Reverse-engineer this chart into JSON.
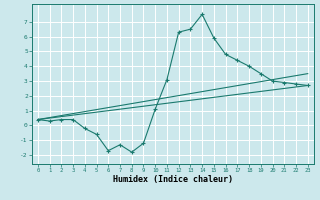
{
  "title": "",
  "xlabel": "Humidex (Indice chaleur)",
  "ylabel": "",
  "bg_color": "#cce8ec",
  "line_color": "#1a7a6e",
  "grid_color": "#ffffff",
  "xlim": [
    -0.5,
    23.5
  ],
  "ylim": [
    -2.6,
    8.2
  ],
  "xticks": [
    0,
    1,
    2,
    3,
    4,
    5,
    6,
    7,
    8,
    9,
    10,
    11,
    12,
    13,
    14,
    15,
    16,
    17,
    18,
    19,
    20,
    21,
    22,
    23
  ],
  "yticks": [
    -2,
    -1,
    0,
    1,
    2,
    3,
    4,
    5,
    6,
    7
  ],
  "curve1_x": [
    0,
    1,
    2,
    3,
    4,
    5,
    6,
    7,
    8,
    9,
    10,
    11,
    12,
    13,
    14,
    15,
    16,
    17,
    18,
    19,
    20,
    21,
    22,
    23
  ],
  "curve1_y": [
    0.4,
    0.3,
    0.4,
    0.4,
    -0.2,
    -0.6,
    -1.7,
    -1.3,
    -1.8,
    -1.2,
    1.1,
    3.1,
    6.3,
    6.5,
    7.5,
    5.9,
    4.8,
    4.4,
    4.0,
    3.5,
    3.0,
    2.9,
    2.8,
    2.7
  ],
  "curve2_x": [
    0,
    23
  ],
  "curve2_y": [
    0.4,
    3.5
  ],
  "curve3_x": [
    0,
    23
  ],
  "curve3_y": [
    0.4,
    2.7
  ]
}
